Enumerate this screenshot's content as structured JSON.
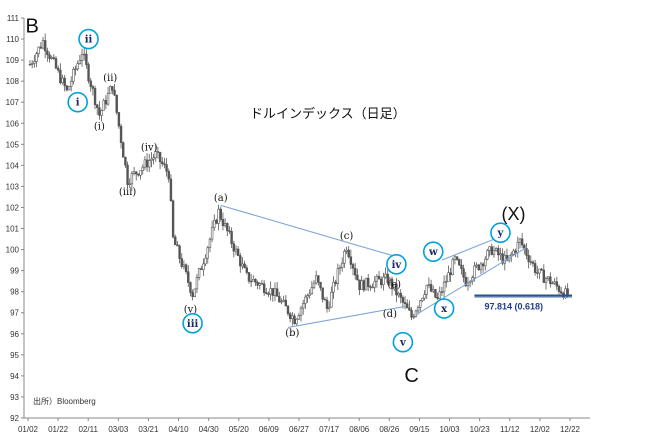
{
  "chart_data": {
    "type": "candlestick",
    "title": "ドルインデックス（日足）",
    "source": "出所）Bloomberg",
    "ylim": [
      92,
      111
    ],
    "y_ticks": [
      92,
      93,
      94,
      95,
      96,
      97,
      98,
      99,
      100,
      101,
      102,
      103,
      104,
      105,
      106,
      107,
      108,
      109,
      110,
      111
    ],
    "x_tick_labels": [
      "01/02",
      "01/22",
      "02/11",
      "03/03",
      "03/21",
      "04/10",
      "04/30",
      "05/20",
      "06/09",
      "06/27",
      "07/17",
      "08/06",
      "08/26",
      "09/15",
      "10/03",
      "10/23",
      "11/12",
      "12/02",
      "12/22"
    ],
    "grid": false,
    "price_path_key_points": [
      {
        "day": 0,
        "close": 108.8
      },
      {
        "day": 6,
        "close": 109.9
      },
      {
        "day": 17,
        "close": 107.5
      },
      {
        "day": 24,
        "close": 109.4
      },
      {
        "day": 32,
        "close": 106.4
      },
      {
        "day": 38,
        "close": 107.8
      },
      {
        "day": 45,
        "close": 103.3
      },
      {
        "day": 58,
        "close": 104.5
      },
      {
        "day": 64,
        "close": 103.6
      },
      {
        "day": 66,
        "close": 100.5
      },
      {
        "day": 75,
        "close": 97.9
      },
      {
        "day": 87,
        "close": 101.8
      },
      {
        "day": 100,
        "close": 98.7
      },
      {
        "day": 112,
        "close": 98.0
      },
      {
        "day": 122,
        "close": 96.7
      },
      {
        "day": 132,
        "close": 98.6
      },
      {
        "day": 137,
        "close": 97.2
      },
      {
        "day": 146,
        "close": 100.2
      },
      {
        "day": 152,
        "close": 98.3
      },
      {
        "day": 165,
        "close": 98.6
      },
      {
        "day": 176,
        "close": 96.8
      },
      {
        "day": 183,
        "close": 98.3
      },
      {
        "day": 188,
        "close": 97.6
      },
      {
        "day": 196,
        "close": 99.5
      },
      {
        "day": 201,
        "close": 98.5
      },
      {
        "day": 213,
        "close": 100.0
      },
      {
        "day": 220,
        "close": 99.4
      },
      {
        "day": 226,
        "close": 100.4
      },
      {
        "day": 234,
        "close": 98.9
      },
      {
        "day": 240,
        "close": 98.5
      },
      {
        "day": 248,
        "close": 97.8
      }
    ],
    "trendlines": [
      {
        "from": {
          "day": 88,
          "value": 102.1
        },
        "to": {
          "day": 171,
          "value": 99.6
        }
      },
      {
        "from": {
          "day": 119,
          "value": 96.3
        },
        "to": {
          "day": 173,
          "value": 97.3
        }
      },
      {
        "from": {
          "day": 178,
          "value": 96.9
        },
        "to": {
          "day": 229,
          "value": 100.1
        }
      },
      {
        "from": {
          "day": 190,
          "value": 99.5
        },
        "to": {
          "day": 219,
          "value": 100.7
        }
      }
    ],
    "support_level": {
      "value": 97.814,
      "label": "97.814 (0.618)",
      "from_day": 205,
      "to_day": 250
    },
    "annotations": {
      "big": [
        {
          "text": "B",
          "day": 1,
          "value": 110.3,
          "size": 20
        },
        {
          "text": "C",
          "day": 176,
          "value": 93.7,
          "size": 20
        },
        {
          "text": "(X)",
          "day": 223,
          "value": 101.4,
          "size": 18
        }
      ],
      "wave_labels": [
        {
          "text": "(ii)",
          "day": 37,
          "value": 108.0
        },
        {
          "text": "(i)",
          "day": 32,
          "value": 105.7
        },
        {
          "text": "(iii)",
          "day": 45,
          "value": 102.6
        },
        {
          "text": "(iv)",
          "day": 55,
          "value": 104.7
        },
        {
          "text": "(v)",
          "day": 74,
          "value": 97.0
        },
        {
          "text": "(a)",
          "day": 88,
          "value": 102.3
        },
        {
          "text": "(b)",
          "day": 121,
          "value": 95.9
        },
        {
          "text": "(c)",
          "day": 146,
          "value": 100.5
        },
        {
          "text": "(d)",
          "day": 166,
          "value": 96.8
        },
        {
          "text": "(e)",
          "day": 168,
          "value": 98.2
        }
      ],
      "circled_labels": [
        {
          "text": "ii",
          "day": 27,
          "value": 110.0
        },
        {
          "text": "i",
          "day": 22,
          "value": 107.0
        },
        {
          "text": "iii",
          "day": 75,
          "value": 96.5
        },
        {
          "text": "iv",
          "day": 169,
          "value": 99.3
        },
        {
          "text": "v",
          "day": 172,
          "value": 95.6
        },
        {
          "text": "w",
          "day": 186,
          "value": 99.9
        },
        {
          "text": "x",
          "day": 191,
          "value": 97.2
        },
        {
          "text": "y",
          "day": 217,
          "value": 100.8
        }
      ]
    }
  },
  "colors": {
    "candles": "#555555",
    "trendline": "#7fa6d6",
    "support": "#2f4f8f",
    "circle_outline": "#00a0e0",
    "axis": "#888888"
  }
}
